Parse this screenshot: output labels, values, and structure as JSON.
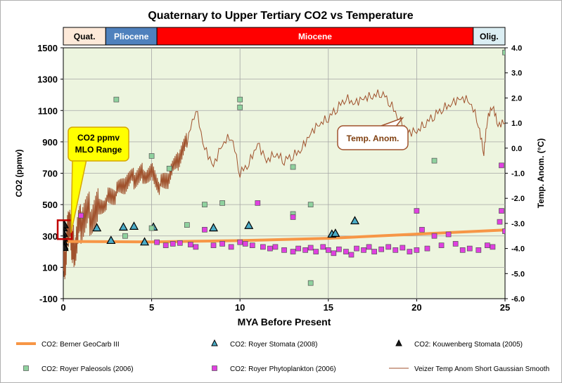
{
  "chart_data": {
    "type": "scatter",
    "title": "Quaternary to Upper Tertiary CO2 vs Temperature",
    "xlabel": "MYA Before Present",
    "ylabel": "CO2 (ppmv)",
    "y2label": "Temp. Anom. (°C)",
    "xlim": [
      0,
      25
    ],
    "ylim": [
      -100,
      1500
    ],
    "y2lim": [
      -6.0,
      4.0
    ],
    "x_ticks": [
      "0",
      "5",
      "10",
      "15",
      "20",
      "25"
    ],
    "y_ticks": [
      "-100",
      "100",
      "300",
      "500",
      "700",
      "900",
      "1100",
      "1300",
      "1500"
    ],
    "y2_ticks": [
      "-6.0",
      "-5.0",
      "-4.0",
      "-3.0",
      "-2.0",
      "-1.0",
      "0.0",
      "1.0",
      "2.0",
      "3.0",
      "4.0"
    ],
    "grid": true,
    "plot_background": "#edf5df",
    "legend_position": "bottom",
    "epochs": [
      {
        "label": "Quat.",
        "start": 0,
        "end": 2.4,
        "color": "#fde9d9",
        "text_color": "#000000"
      },
      {
        "label": "Pliocene",
        "start": 2.4,
        "end": 5.3,
        "color": "#4f81bd",
        "text_color": "#ffffff"
      },
      {
        "label": "Miocene",
        "start": 5.3,
        "end": 23.2,
        "color": "#ff0000",
        "text_color": "#ffffff"
      },
      {
        "label": "Olig.",
        "start": 23.2,
        "end": 25,
        "color": "#dbeef3",
        "text_color": "#000000"
      }
    ],
    "annotations": [
      {
        "text": "CO2 ppmv\nMLO Range",
        "x": 0.2,
        "y": 320,
        "color": "#ffff00",
        "border": "#d6a600"
      },
      {
        "text": "Temp. Anom.",
        "x": 19.2,
        "y2": 1.2,
        "color": "#ffffff",
        "border": "#a0522d"
      }
    ],
    "series": [
      {
        "name": "CO2: Berner GeoCarb III",
        "type": "line",
        "color": "#f79646",
        "points": [
          [
            0,
            265
          ],
          [
            5,
            262
          ],
          [
            10,
            270
          ],
          [
            15,
            285
          ],
          [
            20,
            312
          ],
          [
            25,
            338
          ]
        ]
      },
      {
        "name": "CO2: Royer Stomata (2008)",
        "type": "triangle",
        "color": "#4bacc6",
        "points": [
          [
            1.9,
            350
          ],
          [
            2.7,
            270
          ],
          [
            3.4,
            355
          ],
          [
            4.0,
            360
          ],
          [
            4.6,
            260
          ],
          [
            5.1,
            355
          ],
          [
            8.5,
            350
          ],
          [
            10.5,
            365
          ],
          [
            15.2,
            310
          ],
          [
            15.4,
            315
          ],
          [
            16.5,
            395
          ]
        ]
      },
      {
        "name": "CO2: Kouwenberg Stomata (2005)",
        "type": "triangle",
        "color": "#1a1a1a",
        "points": [
          [
            0.0,
            350
          ],
          [
            0.01,
            315
          ],
          [
            0.02,
            285
          ],
          [
            0.03,
            260
          ],
          [
            0.04,
            235
          ],
          [
            0.05,
            225
          ],
          [
            0.06,
            370
          ]
        ]
      },
      {
        "name": "CO2: Royer Paleosols (2006)",
        "type": "square",
        "color": "#8fd19e",
        "points": [
          [
            3.0,
            1170
          ],
          [
            3.5,
            300
          ],
          [
            5.0,
            810
          ],
          [
            5.0,
            350
          ],
          [
            6.0,
            730
          ],
          [
            7.0,
            370
          ],
          [
            8.0,
            500
          ],
          [
            9.0,
            510
          ],
          [
            10.0,
            1170
          ],
          [
            10.0,
            1120
          ],
          [
            13.0,
            740
          ],
          [
            13.0,
            440
          ],
          [
            14.0,
            500
          ],
          [
            14.0,
            0
          ],
          [
            21.0,
            780
          ],
          [
            25.0,
            1470
          ]
        ]
      },
      {
        "name": "CO2: Royer Phytoplankton (2006)",
        "type": "square",
        "color": "#e040e0",
        "points": [
          [
            1.0,
            430
          ],
          [
            5.3,
            260
          ],
          [
            5.8,
            240
          ],
          [
            6.2,
            250
          ],
          [
            6.6,
            255
          ],
          [
            7.2,
            245
          ],
          [
            7.5,
            230
          ],
          [
            8.0,
            340
          ],
          [
            8.5,
            240
          ],
          [
            9.0,
            250
          ],
          [
            9.5,
            230
          ],
          [
            10.0,
            260
          ],
          [
            10.3,
            250
          ],
          [
            10.7,
            240
          ],
          [
            11.0,
            510
          ],
          [
            11.3,
            230
          ],
          [
            11.7,
            220
          ],
          [
            12.0,
            230
          ],
          [
            12.5,
            210
          ],
          [
            13.0,
            200
          ],
          [
            13.0,
            420
          ],
          [
            13.3,
            220
          ],
          [
            13.7,
            210
          ],
          [
            14.0,
            225
          ],
          [
            14.3,
            200
          ],
          [
            14.7,
            230
          ],
          [
            15.0,
            210
          ],
          [
            15.3,
            190
          ],
          [
            15.6,
            215
          ],
          [
            16.0,
            200
          ],
          [
            16.3,
            180
          ],
          [
            16.6,
            220
          ],
          [
            17.0,
            210
          ],
          [
            17.3,
            230
          ],
          [
            17.6,
            200
          ],
          [
            18.0,
            215
          ],
          [
            18.4,
            230
          ],
          [
            18.8,
            210
          ],
          [
            19.2,
            225
          ],
          [
            19.6,
            200
          ],
          [
            20.0,
            460
          ],
          [
            20.0,
            210
          ],
          [
            20.3,
            340
          ],
          [
            20.6,
            220
          ],
          [
            21.0,
            300
          ],
          [
            21.4,
            240
          ],
          [
            21.8,
            310
          ],
          [
            22.2,
            250
          ],
          [
            22.6,
            210
          ],
          [
            23.0,
            220
          ],
          [
            23.5,
            210
          ],
          [
            24.0,
            240
          ],
          [
            24.3,
            230
          ],
          [
            24.7,
            390
          ],
          [
            24.8,
            460
          ],
          [
            24.8,
            750
          ],
          [
            25.0,
            330
          ]
        ]
      },
      {
        "name": "Veizer Temp Anom Short Gaussian Smooth",
        "type": "line",
        "axis": "y2",
        "color": "#a0522d",
        "points": [
          [
            0,
            -4.9
          ],
          [
            0.3,
            -3.2
          ],
          [
            0.6,
            -3.9
          ],
          [
            1.0,
            -3.0
          ],
          [
            1.5,
            -2.6
          ],
          [
            2.0,
            -2.3
          ],
          [
            2.5,
            -2.0
          ],
          [
            3.0,
            -1.8
          ],
          [
            3.5,
            -1.5
          ],
          [
            4.0,
            -1.2
          ],
          [
            4.5,
            -1.0
          ],
          [
            5.0,
            -0.9
          ],
          [
            5.5,
            -1.5
          ],
          [
            6.0,
            -1.2
          ],
          [
            6.5,
            -0.5
          ],
          [
            7.0,
            0.2
          ],
          [
            7.5,
            1.6
          ],
          [
            8.0,
            0.0
          ],
          [
            8.5,
            -0.7
          ],
          [
            9.0,
            0.2
          ],
          [
            9.5,
            0.5
          ],
          [
            10.0,
            -1.0
          ],
          [
            10.5,
            -0.6
          ],
          [
            11.0,
            0.2
          ],
          [
            11.5,
            -0.5
          ],
          [
            12.0,
            -0.2
          ],
          [
            12.5,
            -0.5
          ],
          [
            13.0,
            -0.3
          ],
          [
            13.5,
            0.0
          ],
          [
            14.0,
            0.6
          ],
          [
            14.5,
            1.0
          ],
          [
            15.0,
            1.2
          ],
          [
            15.5,
            1.6
          ],
          [
            16.0,
            2.0
          ],
          [
            16.5,
            1.8
          ],
          [
            17.0,
            2.0
          ],
          [
            17.5,
            2.1
          ],
          [
            18.0,
            2.2
          ],
          [
            18.5,
            1.8
          ],
          [
            19.0,
            1.2
          ],
          [
            19.5,
            0.6
          ],
          [
            20.0,
            0.7
          ],
          [
            20.5,
            1.0
          ],
          [
            21.0,
            1.3
          ],
          [
            21.5,
            1.6
          ],
          [
            22.0,
            1.8
          ],
          [
            22.5,
            2.0
          ],
          [
            23.0,
            1.9
          ],
          [
            23.5,
            1.0
          ],
          [
            23.8,
            -0.2
          ],
          [
            24.0,
            1.2
          ],
          [
            24.3,
            1.6
          ],
          [
            24.6,
            1.0
          ],
          [
            25.0,
            1.0
          ]
        ]
      }
    ]
  }
}
